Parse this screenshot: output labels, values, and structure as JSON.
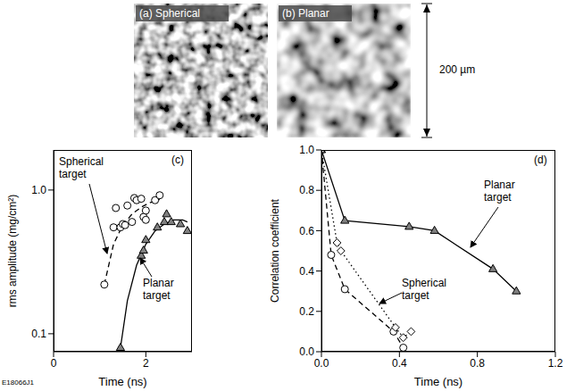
{
  "images": [
    {
      "label": "(a) Spherical"
    },
    {
      "label": "(b) Planar"
    }
  ],
  "scale_bar": "200 µm",
  "figure_id": "E18066J1",
  "chart_data": [
    {
      "type": "scatter",
      "panel": "(c)",
      "x_label": "Time (ns)",
      "y_label": "rms amplitude (mg/cm²)",
      "log": "y",
      "xlim": [
        0,
        3
      ],
      "xticks": [
        0,
        2
      ],
      "ylim": [
        0.075,
        1.9
      ],
      "yticks": [
        0.1,
        {
          "value": 1,
          "label": "1.0"
        }
      ],
      "annotations": [
        "Spherical target",
        "Planar target"
      ],
      "series": [
        {
          "type": "scatter",
          "marker": "circle",
          "color": "#ffffff",
          "x": [
            1.1,
            1.3,
            1.35,
            1.45,
            1.5,
            1.55,
            1.6,
            1.7,
            1.75,
            1.8,
            1.9,
            1.95,
            2.0,
            2.0,
            2.2,
            2.3
          ],
          "values": [
            0.22,
            0.55,
            0.75,
            0.55,
            0.58,
            0.57,
            0.78,
            0.6,
            0.88,
            0.85,
            0.87,
            0.65,
            0.72,
            0.62,
            0.85,
            0.92
          ]
        },
        {
          "type": "line",
          "line_style": "dashed",
          "color": "#000000",
          "x": [
            1.1,
            1.3,
            1.5,
            1.7,
            1.9,
            2.1,
            2.3
          ],
          "values": [
            0.22,
            0.42,
            0.57,
            0.68,
            0.76,
            0.82,
            0.86
          ]
        },
        {
          "type": "scatter",
          "marker": "triangle",
          "color": "#808080",
          "x": [
            1.45,
            1.9,
            1.95,
            2.0,
            2.25,
            2.4,
            2.45,
            2.55,
            2.75,
            2.9
          ],
          "values": [
            0.08,
            0.35,
            0.38,
            0.45,
            0.55,
            0.6,
            0.68,
            0.6,
            0.58,
            0.52
          ]
        },
        {
          "type": "line",
          "line_style": "solid",
          "color": "#000000",
          "x": [
            1.45,
            1.6,
            1.8,
            2.0,
            2.2,
            2.4,
            2.6,
            2.8,
            2.9
          ],
          "values": [
            0.08,
            0.17,
            0.3,
            0.42,
            0.52,
            0.58,
            0.62,
            0.62,
            0.6
          ]
        }
      ]
    },
    {
      "type": "line",
      "panel": "(d)",
      "x_label": "Time (ns)",
      "y_label": "Correlation coefficient",
      "xlim": [
        0,
        1.2
      ],
      "xticks": [
        {
          "value": 0,
          "label": "0.0"
        },
        0.4,
        0.8,
        1.2
      ],
      "ylim": [
        0,
        1
      ],
      "yticks": [
        {
          "value": 0,
          "label": "0.0"
        },
        0.2,
        0.4,
        0.6,
        0.8,
        {
          "value": 1,
          "label": "1.0"
        }
      ],
      "annotations": [
        "Planar target",
        "Spherical target"
      ],
      "series": [
        {
          "type": "line",
          "marker": "triangle",
          "line_style": "solid",
          "color": "#808080",
          "x": [
            0,
            0.12,
            0.45,
            0.58,
            0.88,
            1.0
          ],
          "values": [
            1.0,
            0.65,
            0.62,
            0.6,
            0.41,
            0.3
          ]
        },
        {
          "type": "line",
          "marker": "circle",
          "line_style": "dashed",
          "color": "#ffffff",
          "x": [
            0,
            0.05,
            0.12,
            0.37,
            0.42
          ],
          "values": [
            1.0,
            0.48,
            0.31,
            0.1,
            0.02
          ]
        },
        {
          "type": "line",
          "marker": "diamond",
          "line_style": "dotted",
          "color": "#ffffff",
          "x": [
            0,
            0.08,
            0.1,
            0.38,
            0.42,
            0.46
          ],
          "values": [
            1.0,
            0.54,
            0.5,
            0.12,
            0.07,
            0.1
          ]
        }
      ]
    }
  ]
}
